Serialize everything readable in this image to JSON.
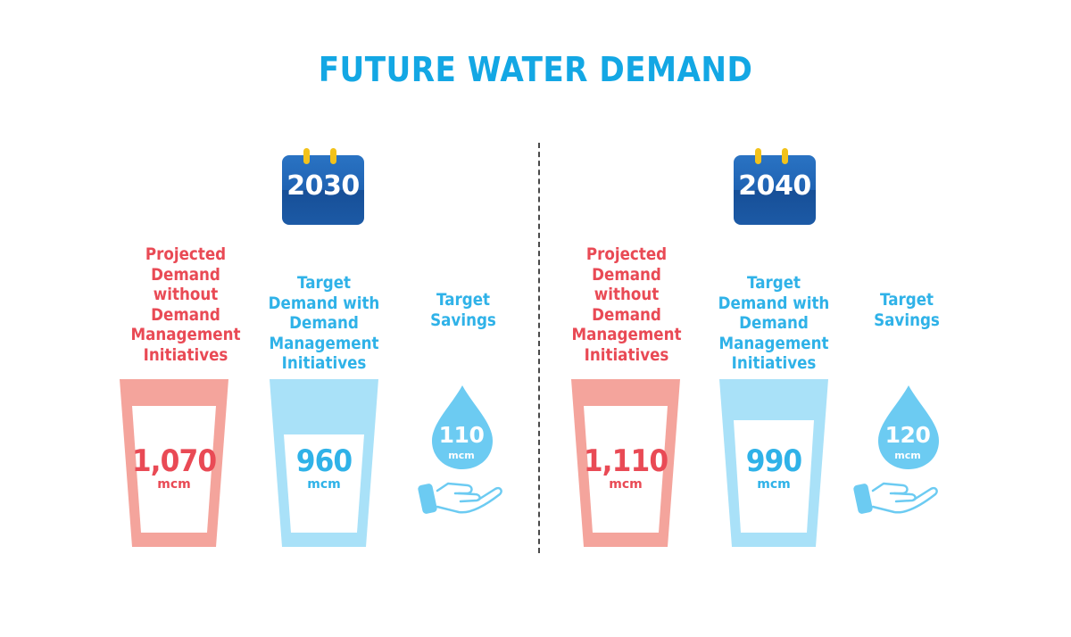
{
  "title": "FUTURE WATER DEMAND",
  "colors": {
    "title": "#13a7e4",
    "projected": "#e94a55",
    "target": "#2fb2e8",
    "calendar": "#1a5ba8"
  },
  "panels": [
    {
      "year": "2030",
      "projected": {
        "label": "Projected Demand without Demand Management Initiatives",
        "value": "1,070",
        "unit": "mcm"
      },
      "target": {
        "label": "Target Demand with Demand Management Initiatives",
        "value": "960",
        "unit": "mcm"
      },
      "savings": {
        "label": "Target Savings",
        "value": "110",
        "unit": "mcm"
      }
    },
    {
      "year": "2040",
      "projected": {
        "label": "Projected Demand without Demand Management Initiatives",
        "value": "1,110",
        "unit": "mcm"
      },
      "target": {
        "label": "Target Demand with Demand Management Initiatives",
        "value": "990",
        "unit": "mcm"
      },
      "savings": {
        "label": "Target Savings",
        "value": "120",
        "unit": "mcm"
      }
    }
  ],
  "icons": [
    "calendar-icon",
    "glass-icon",
    "water-drop-icon",
    "open-hand-icon"
  ]
}
